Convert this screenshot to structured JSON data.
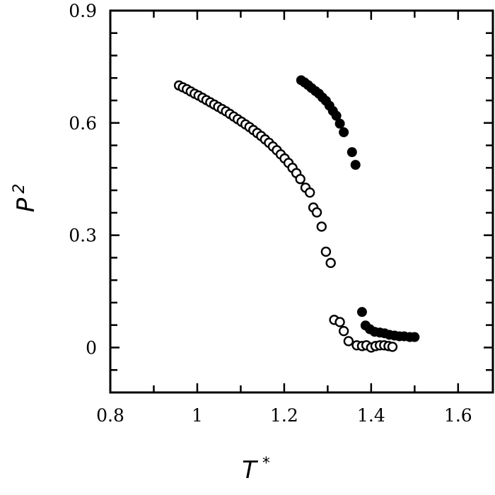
{
  "chart_data": {
    "type": "scatter",
    "title": "",
    "xlabel": "T *",
    "ylabel": "P 2",
    "xlabel_main": "T",
    "xlabel_sup": "*",
    "ylabel_main": "P",
    "ylabel_sub": "2",
    "xlim": [
      0.8,
      1.68
    ],
    "ylim": [
      -0.12,
      0.9
    ],
    "xticks": [
      0.8,
      1.0,
      1.2,
      1.4,
      1.6
    ],
    "xtick_labels": [
      "0.8",
      "1",
      "1.2",
      "1.4",
      "1.6"
    ],
    "x_minor_step": 0.1,
    "yticks": [
      0,
      0.3,
      0.6,
      0.9
    ],
    "ytick_labels": [
      "0",
      "0.3",
      "0.6",
      "0.9"
    ],
    "y_minor_step": 0.06,
    "grid": false,
    "legend": null,
    "series": [
      {
        "name": "open circles",
        "marker": "open-circle",
        "color": "#000000",
        "x": [
          0.958,
          0.967,
          0.976,
          0.985,
          0.994,
          1.003,
          1.012,
          1.021,
          1.03,
          1.039,
          1.048,
          1.057,
          1.066,
          1.075,
          1.084,
          1.093,
          1.102,
          1.111,
          1.12,
          1.129,
          1.138,
          1.147,
          1.156,
          1.165,
          1.174,
          1.183,
          1.192,
          1.201,
          1.21,
          1.219,
          1.228,
          1.237,
          1.249,
          1.259,
          1.267,
          1.275,
          1.286,
          1.296,
          1.307,
          1.315,
          1.328,
          1.337,
          1.348,
          1.367,
          1.379,
          1.389,
          1.4,
          1.41,
          1.42,
          1.43,
          1.44,
          1.449
        ],
        "y": [
          0.7,
          0.695,
          0.69,
          0.684,
          0.678,
          0.673,
          0.667,
          0.661,
          0.655,
          0.649,
          0.643,
          0.637,
          0.631,
          0.624,
          0.617,
          0.61,
          0.603,
          0.596,
          0.589,
          0.581,
          0.573,
          0.565,
          0.556,
          0.547,
          0.537,
          0.527,
          0.516,
          0.505,
          0.493,
          0.48,
          0.466,
          0.45,
          0.427,
          0.414,
          0.374,
          0.361,
          0.323,
          0.256,
          0.226,
          0.074,
          0.068,
          0.044,
          0.017,
          0.006,
          0.004,
          0.006,
          0.0,
          0.004,
          0.006,
          0.006,
          0.004,
          0.002
        ]
      },
      {
        "name": "filled circles",
        "marker": "filled-circle",
        "color": "#000000",
        "x": [
          1.239,
          1.247,
          1.255,
          1.263,
          1.272,
          1.28,
          1.288,
          1.296,
          1.304,
          1.312,
          1.32,
          1.328,
          1.337,
          1.356,
          1.364,
          1.379,
          1.387,
          1.397,
          1.408,
          1.42,
          1.431,
          1.442,
          1.454,
          1.465,
          1.476,
          1.489,
          1.5
        ],
        "y": [
          0.714,
          0.708,
          0.701,
          0.693,
          0.685,
          0.678,
          0.668,
          0.659,
          0.646,
          0.632,
          0.619,
          0.598,
          0.575,
          0.522,
          0.488,
          0.095,
          0.059,
          0.049,
          0.042,
          0.04,
          0.038,
          0.034,
          0.032,
          0.03,
          0.03,
          0.028,
          0.028
        ]
      }
    ]
  }
}
